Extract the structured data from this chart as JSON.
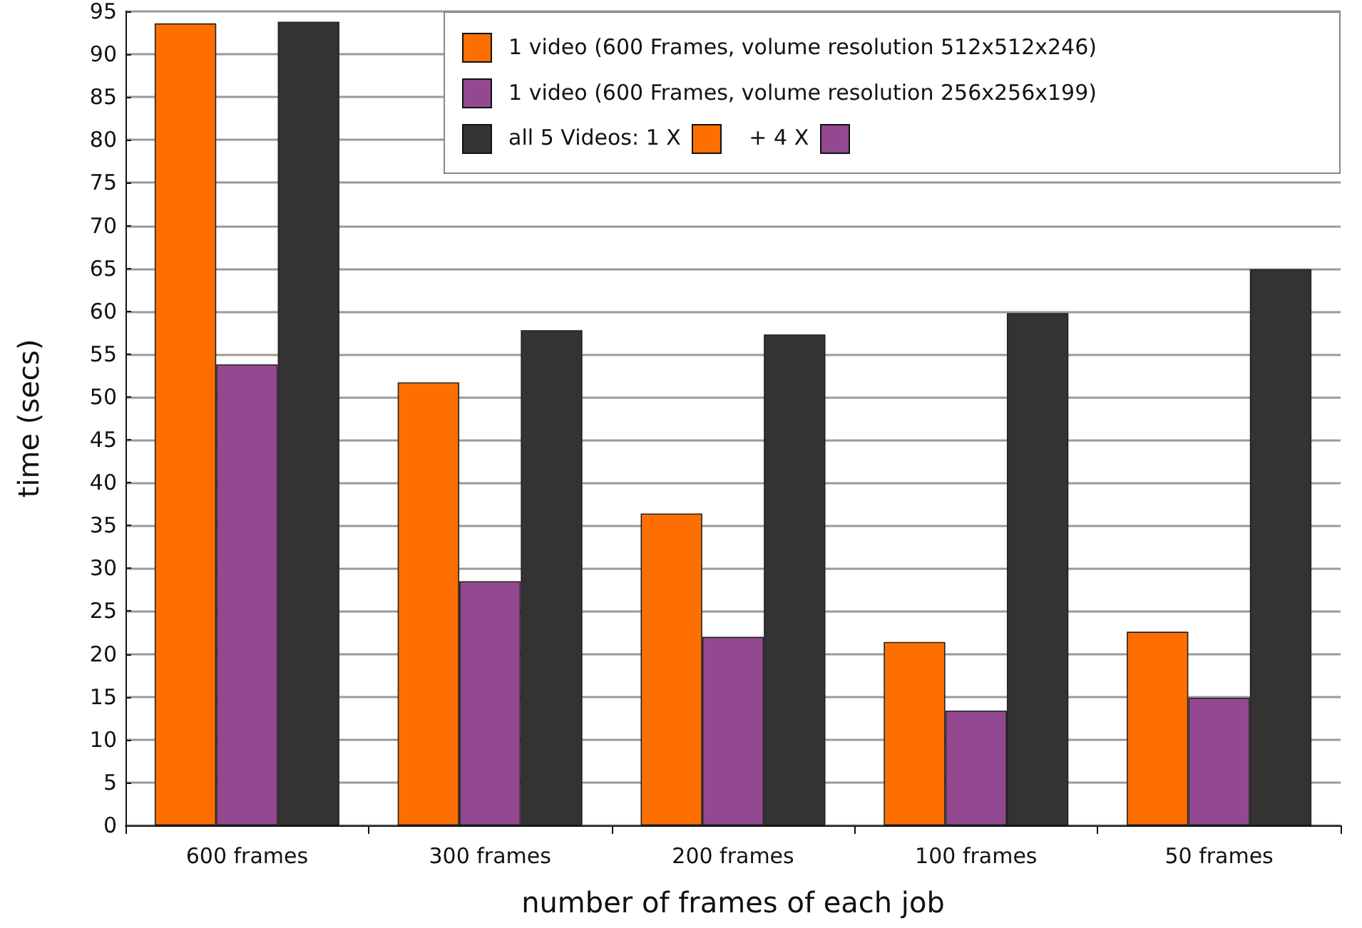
{
  "chart_data": {
    "type": "bar",
    "xlabel": "number of frames of each job",
    "ylabel": "time (secs)",
    "categories": [
      "600 frames",
      "300 frames",
      "200 frames",
      "100 frames",
      "50 frames"
    ],
    "series": [
      {
        "name": "1 video (600 Frames, volume resolution 512x512x246)",
        "color": "#ff6f00",
        "values": [
          93.6,
          51.7,
          36.4,
          21.4,
          22.6
        ]
      },
      {
        "name": "1 video (600 Frames, volume resolution 256x256x199)",
        "color": "#93488f",
        "values": [
          53.8,
          28.5,
          22.0,
          13.4,
          14.9
        ]
      },
      {
        "name": "all 5 Videos: 1 X + 4 X",
        "color": "#333333",
        "values": [
          93.8,
          57.8,
          57.3,
          59.8,
          64.9
        ]
      }
    ],
    "ylim": [
      0,
      95
    ],
    "yticks": [
      0,
      5,
      10,
      15,
      20,
      25,
      30,
      35,
      40,
      45,
      50,
      55,
      60,
      65,
      70,
      75,
      80,
      85,
      90,
      95
    ],
    "grid": "y",
    "legend": "top right"
  }
}
